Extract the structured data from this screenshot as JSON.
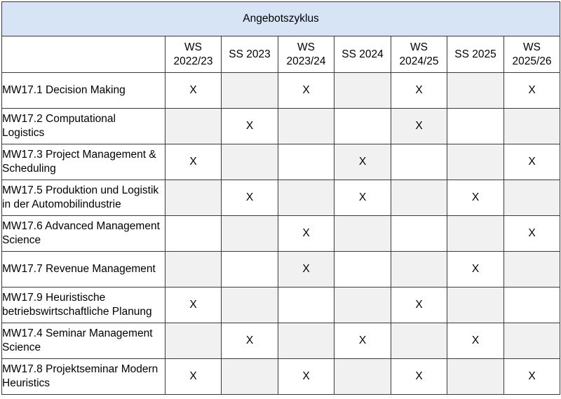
{
  "table": {
    "title": "Angebotszyklus",
    "corner": "",
    "columns": [
      {
        "line1": "WS",
        "line2": "2022/23"
      },
      {
        "line1": "SS 2023",
        "line2": ""
      },
      {
        "line1": "WS",
        "line2": "2023/24"
      },
      {
        "line1": "SS 2024",
        "line2": ""
      },
      {
        "line1": "WS",
        "line2": "2024/25"
      },
      {
        "line1": "SS 2025",
        "line2": ""
      },
      {
        "line1": "WS",
        "line2": "2025/26"
      }
    ],
    "rows": [
      {
        "line1": "MW17.1 Decision Making",
        "line2": "",
        "cells": [
          "X",
          "",
          "X",
          "",
          "X",
          "",
          "X"
        ]
      },
      {
        "line1": "MW17.2 Computational",
        "line2": "Logistics",
        "cells": [
          "",
          "X",
          "",
          "",
          "X",
          "",
          ""
        ]
      },
      {
        "line1": "MW17.3 Project Management &",
        "line2": "Scheduling",
        "cells": [
          "X",
          "",
          "",
          "X",
          "",
          "",
          "X"
        ]
      },
      {
        "line1": "MW17.5 Produktion und Logistik",
        "line2": "in der Automobilindustrie",
        "cells": [
          "",
          "X",
          "",
          "X",
          "",
          "X",
          ""
        ]
      },
      {
        "line1": "MW17.6 Advanced Management",
        "line2": "Science",
        "cells": [
          "",
          "",
          "X",
          "",
          "",
          "",
          "X"
        ]
      },
      {
        "line1": "MW17.7 Revenue Management",
        "line2": "",
        "cells": [
          "",
          "",
          "X",
          "",
          "",
          "X",
          ""
        ]
      },
      {
        "line1": "MW17.9 Heuristische",
        "line2": "betriebswirtschaftliche Planung",
        "cells": [
          "X",
          "",
          "",
          "",
          "X",
          "",
          ""
        ]
      },
      {
        "line1": "MW17.4 Seminar Management",
        "line2": "Science",
        "cells": [
          "",
          "X",
          "",
          "X",
          "",
          "X",
          ""
        ]
      },
      {
        "line1": "MW17.8 Projektseminar Modern",
        "line2": "Heuristics",
        "cells": [
          "X",
          "",
          "X",
          "",
          "X",
          "",
          "X"
        ]
      }
    ],
    "colors": {
      "header_bg": "#d6e4f5",
      "shaded_cell_bg": "#f1f1f1",
      "border": "#3a3a3a"
    }
  }
}
